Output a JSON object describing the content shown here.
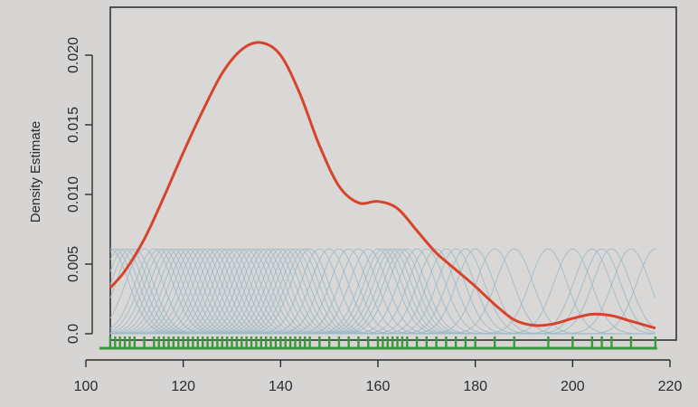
{
  "chart_data": {
    "type": "line",
    "title": "",
    "xlabel": "",
    "ylabel": "Density Estimate",
    "xlim": [
      100,
      220
    ],
    "ylim": [
      0,
      0.022
    ],
    "x_ticks": [
      "100",
      "120",
      "140",
      "160",
      "180",
      "200",
      "220"
    ],
    "y_ticks": [
      "0.0",
      "0.005",
      "0.010",
      "0.015",
      "0.020"
    ],
    "grid": false,
    "series": [
      {
        "role": "density-estimate",
        "color": "#d8442a",
        "x": [
          105,
          108,
          112,
          116,
          120,
          124,
          128,
          132,
          136,
          140,
          144,
          148,
          152,
          156,
          160,
          164,
          168,
          172,
          176,
          180,
          184,
          188,
          192,
          196,
          200,
          204,
          208,
          212,
          217
        ],
        "y": [
          0.0033,
          0.0045,
          0.0068,
          0.0098,
          0.013,
          0.016,
          0.0187,
          0.0204,
          0.0209,
          0.02,
          0.0172,
          0.0135,
          0.0106,
          0.0094,
          0.0095,
          0.009,
          0.0074,
          0.0058,
          0.0046,
          0.0034,
          0.0021,
          0.001,
          0.0006,
          0.0007,
          0.0011,
          0.0014,
          0.0013,
          0.0009,
          0.0004
        ]
      },
      {
        "role": "kernel-bumps",
        "color": "#9db8c8",
        "kernel_peak": 0.0061,
        "kernel_sd": 3.8,
        "centers": [
          105,
          106,
          107,
          108,
          109,
          110,
          112,
          114,
          115,
          116,
          117,
          118,
          119,
          120,
          121,
          122,
          123,
          124,
          125,
          126,
          127,
          128,
          129,
          130,
          131,
          132,
          133,
          134,
          135,
          136,
          137,
          138,
          139,
          140,
          141,
          142,
          143,
          144,
          145,
          146,
          148,
          150,
          152,
          154,
          156,
          158,
          160,
          161,
          162,
          163,
          164,
          165,
          166,
          168,
          170,
          172,
          174,
          176,
          178,
          180,
          184,
          188,
          195,
          200,
          204,
          206,
          208,
          212,
          217
        ]
      }
    ],
    "rug": {
      "color": "#3a9a3a",
      "x": [
        105,
        106,
        107,
        108,
        109,
        110,
        112,
        114,
        115,
        116,
        117,
        118,
        119,
        120,
        121,
        122,
        123,
        124,
        125,
        126,
        127,
        128,
        129,
        130,
        131,
        132,
        133,
        134,
        135,
        136,
        137,
        138,
        139,
        140,
        141,
        142,
        143,
        144,
        145,
        146,
        148,
        150,
        152,
        154,
        156,
        158,
        160,
        161,
        162,
        163,
        164,
        165,
        166,
        168,
        170,
        172,
        174,
        176,
        178,
        180,
        184,
        188,
        195,
        200,
        204,
        206,
        208,
        212,
        217
      ]
    }
  }
}
